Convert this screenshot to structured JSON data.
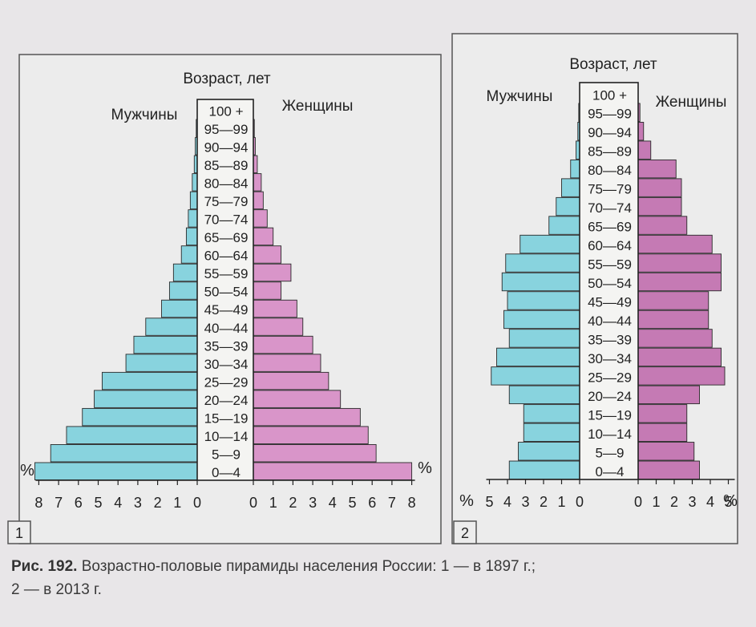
{
  "charts": [
    {
      "panel_number": "1",
      "title": "Возраст, лет",
      "male_label": "Мужчины",
      "female_label": "Женщины",
      "left_percent_label": "%",
      "right_percent_label": "%"
    },
    {
      "panel_number": "2",
      "title": "Возраст, лет",
      "male_label": "Мужчины",
      "female_label": "Женщины",
      "left_percent_label": "%",
      "right_percent_label": "%"
    }
  ],
  "caption": {
    "label": "Рис. 192.",
    "text": "Возрастно-половые пирамиды населения России: 1 — в 1897 г.;",
    "line2": "2 — в 2013 г."
  },
  "colors": {
    "male": "#88d3de",
    "female": "#d995c9",
    "female_dark": "#c57ab4",
    "axis": "#222222",
    "panel_border": "#555555"
  },
  "chart_data": [
    {
      "type": "bar",
      "orientation": "horizontal-pyramid",
      "categories": [
        "100 +",
        "95—99",
        "90—94",
        "85—89",
        "80—84",
        "75—79",
        "70—74",
        "65—69",
        "60—64",
        "55—59",
        "50—54",
        "45—49",
        "40—44",
        "35—39",
        "30—34",
        "25—29",
        "20—24",
        "15—19",
        "10—14",
        "5—9",
        "0—4"
      ],
      "series": [
        {
          "name": "Мужчины",
          "values": [
            0.0,
            0.05,
            0.1,
            0.15,
            0.25,
            0.35,
            0.45,
            0.55,
            0.8,
            1.2,
            1.4,
            1.8,
            2.6,
            3.2,
            3.6,
            4.8,
            5.2,
            5.8,
            6.6,
            7.4,
            8.2
          ]
        },
        {
          "name": "Женщины",
          "values": [
            0.0,
            0.05,
            0.1,
            0.2,
            0.4,
            0.5,
            0.7,
            1.0,
            1.4,
            1.9,
            1.4,
            2.2,
            2.5,
            3.0,
            3.4,
            3.8,
            4.4,
            5.4,
            5.8,
            6.2,
            8.0
          ]
        }
      ],
      "x_ticks": [
        8,
        7,
        6,
        5,
        4,
        3,
        2,
        1,
        0
      ],
      "xlim": [
        0,
        8
      ],
      "unit": "%"
    },
    {
      "type": "bar",
      "orientation": "horizontal-pyramid",
      "categories": [
        "100 +",
        "95—99",
        "90—94",
        "85—89",
        "80—84",
        "75—79",
        "70—74",
        "65—69",
        "60—64",
        "55—59",
        "50—54",
        "45—49",
        "40—44",
        "35—39",
        "30—34",
        "25—29",
        "20—24",
        "15—19",
        "10—14",
        "5—9",
        "0—4"
      ],
      "series": [
        {
          "name": "Мужчины",
          "values": [
            0.0,
            0.05,
            0.1,
            0.2,
            0.5,
            1.0,
            1.3,
            1.7,
            3.3,
            4.1,
            4.3,
            4.0,
            4.2,
            3.9,
            4.6,
            4.9,
            3.9,
            3.1,
            3.1,
            3.4,
            3.9
          ]
        },
        {
          "name": "Женщины",
          "values": [
            0.0,
            0.1,
            0.3,
            0.7,
            2.1,
            2.4,
            2.4,
            2.7,
            4.1,
            4.6,
            4.6,
            3.9,
            3.9,
            4.1,
            4.6,
            4.8,
            3.4,
            2.7,
            2.7,
            3.1,
            3.4
          ]
        }
      ],
      "x_ticks": [
        5,
        4,
        3,
        2,
        1,
        0
      ],
      "xlim": [
        0,
        5
      ],
      "unit": "%"
    }
  ]
}
